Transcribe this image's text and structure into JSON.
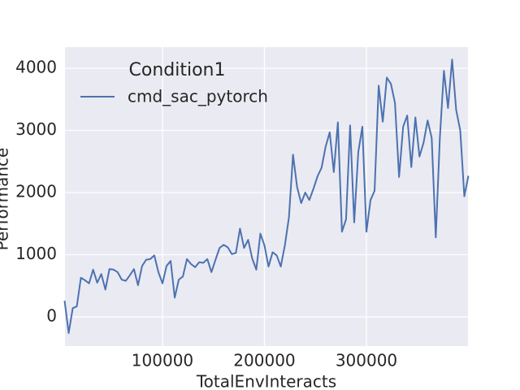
{
  "chart_data": {
    "type": "line",
    "xlabel": "TotalEnvInteracts",
    "ylabel": "Performance",
    "legend_title": "Condition1",
    "legend": "upper left",
    "grid": true,
    "xlim": [
      4400,
      399600
    ],
    "ylim": [
      -470,
      4340
    ],
    "xticks": [
      100000,
      200000,
      300000
    ],
    "yticks": [
      0,
      1000,
      2000,
      3000,
      4000
    ],
    "x": [
      4000,
      8000,
      12000,
      16000,
      20000,
      24000,
      28000,
      32000,
      36000,
      40000,
      44000,
      48000,
      52000,
      56000,
      60000,
      64000,
      68000,
      72000,
      76000,
      80000,
      84000,
      88000,
      92000,
      96000,
      100000,
      104000,
      108000,
      112000,
      116000,
      120000,
      124000,
      128000,
      132000,
      136000,
      140000,
      144000,
      148000,
      152000,
      156000,
      160000,
      164000,
      168000,
      172000,
      176000,
      180000,
      184000,
      188000,
      192000,
      196000,
      200000,
      204000,
      208000,
      212000,
      216000,
      220000,
      224000,
      228000,
      232000,
      236000,
      240000,
      244000,
      248000,
      252000,
      256000,
      260000,
      264000,
      268000,
      272000,
      276000,
      280000,
      284000,
      288000,
      292000,
      296000,
      300000,
      304000,
      308000,
      312000,
      316000,
      320000,
      324000,
      328000,
      332000,
      336000,
      340000,
      344000,
      348000,
      352000,
      356000,
      360000,
      364000,
      368000,
      372000,
      376000,
      380000,
      384000,
      388000,
      392000,
      396000,
      400000
    ],
    "series": [
      {
        "name": "cmd_sac_pytorch",
        "color": "#4c72b0",
        "values": [
          260,
          -260,
          140,
          170,
          630,
          590,
          540,
          760,
          550,
          690,
          440,
          770,
          760,
          720,
          600,
          580,
          670,
          770,
          510,
          820,
          920,
          930,
          990,
          720,
          540,
          820,
          900,
          310,
          600,
          650,
          930,
          850,
          800,
          880,
          870,
          930,
          720,
          920,
          1110,
          1160,
          1120,
          1010,
          1030,
          1420,
          1110,
          1240,
          940,
          760,
          1340,
          1150,
          810,
          1040,
          990,
          810,
          1150,
          1600,
          2610,
          2090,
          1830,
          2000,
          1880,
          2060,
          2260,
          2400,
          2740,
          2970,
          2330,
          3130,
          1370,
          1570,
          3080,
          1520,
          2650,
          3060,
          1370,
          1880,
          2030,
          3720,
          3140,
          3850,
          3750,
          3440,
          2250,
          3060,
          3240,
          2410,
          3210,
          2580,
          2800,
          3160,
          2880,
          1280,
          2880,
          3960,
          3360,
          4140,
          3330,
          3000,
          1940,
          2270
        ]
      }
    ]
  }
}
